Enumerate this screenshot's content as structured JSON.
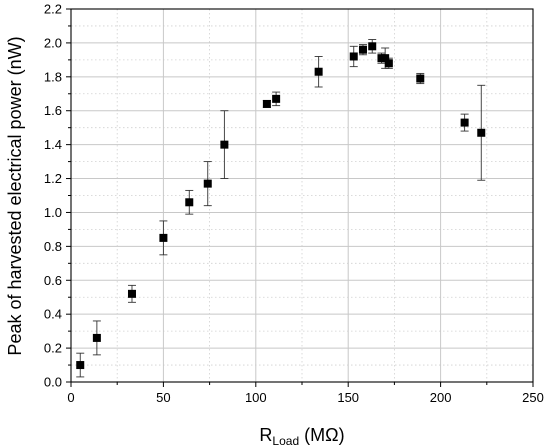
{
  "chart_data": {
    "type": "scatter",
    "xlabel": {
      "main": "R",
      "sub": "Load",
      "unit": " (MΩ)"
    },
    "ylabel": "Peak of harvested electrical power (nW)",
    "xlim": [
      0,
      250
    ],
    "ylim": [
      0,
      2.2
    ],
    "xticks": [
      0,
      50,
      100,
      150,
      200,
      250
    ],
    "yticks": [
      0.0,
      0.2,
      0.4,
      0.6,
      0.8,
      1.0,
      1.2,
      1.4,
      1.6,
      1.8,
      2.0,
      2.2
    ],
    "ytick_labels": [
      "0.0",
      "0.2",
      "0.4",
      "0.6",
      "0.8",
      "1.0",
      "1.2",
      "1.4",
      "1.6",
      "1.8",
      "2.0",
      "2.2"
    ],
    "grid": {
      "major": true,
      "minor_dotted": true
    },
    "marker": "filled-square",
    "colors": {
      "marker": "#000000",
      "grid_major": "#c8c8c8",
      "grid_minor": "#d0d0d0",
      "axis": "#000000"
    },
    "series": [
      {
        "points": [
          {
            "x": 5,
            "y": 0.1,
            "err": 0.07
          },
          {
            "x": 14,
            "y": 0.26,
            "err": 0.1
          },
          {
            "x": 33,
            "y": 0.52,
            "err": 0.05
          },
          {
            "x": 50,
            "y": 0.85,
            "err": 0.1
          },
          {
            "x": 64,
            "y": 1.06,
            "err": 0.07
          },
          {
            "x": 74,
            "y": 1.17,
            "err": 0.13
          },
          {
            "x": 83,
            "y": 1.4,
            "err": 0.2
          },
          {
            "x": 106,
            "y": 1.64,
            "err": 0.02
          },
          {
            "x": 111,
            "y": 1.67,
            "err": 0.04
          },
          {
            "x": 134,
            "y": 1.83,
            "err": 0.09
          },
          {
            "x": 153,
            "y": 1.92,
            "err": 0.06
          },
          {
            "x": 158,
            "y": 1.96,
            "err": 0.03
          },
          {
            "x": 163,
            "y": 1.98,
            "err": 0.04
          },
          {
            "x": 168,
            "y": 1.91,
            "err": 0.03
          },
          {
            "x": 170,
            "y": 1.91,
            "err": 0.06
          },
          {
            "x": 172,
            "y": 1.88,
            "err": 0.03
          },
          {
            "x": 189,
            "y": 1.79,
            "err": 0.03
          },
          {
            "x": 213,
            "y": 1.53,
            "err": 0.05
          },
          {
            "x": 222,
            "y": 1.47,
            "err": 0.28
          }
        ]
      }
    ]
  }
}
